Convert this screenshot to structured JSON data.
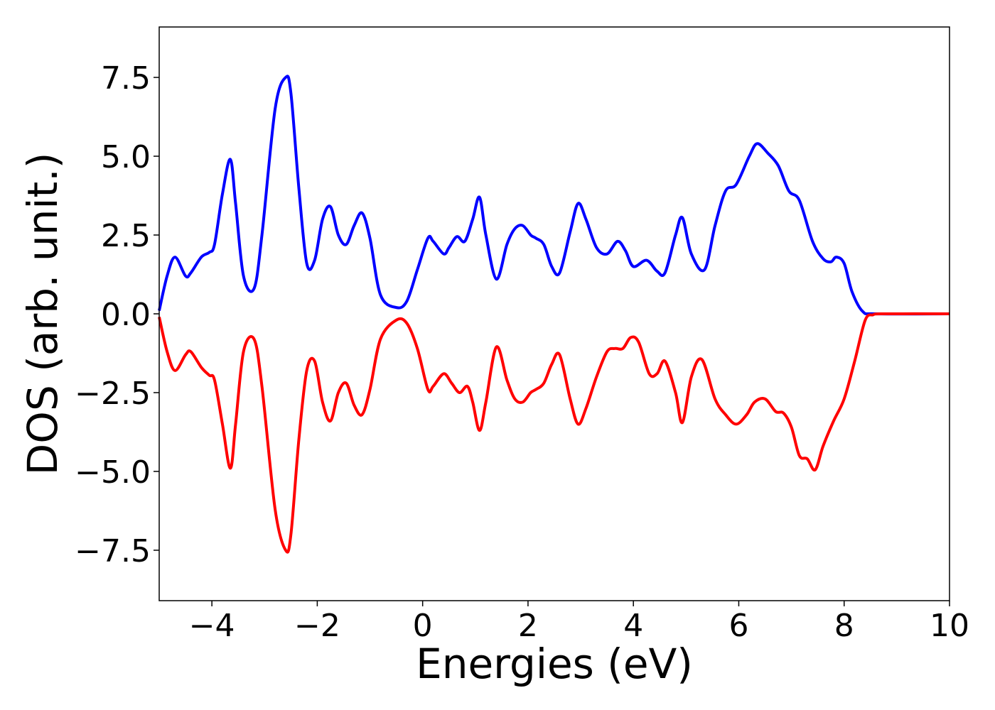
{
  "chart_data": {
    "type": "line",
    "title": "",
    "xlabel": "Energies (eV)",
    "ylabel": "DOS (arb. unit.)",
    "xlim": [
      -5,
      10
    ],
    "ylim": [
      -9.1,
      9.1
    ],
    "xticks": [
      -4,
      -2,
      0,
      2,
      4,
      6,
      8,
      10
    ],
    "xtick_labels": [
      "−4",
      "−2",
      "0",
      "2",
      "4",
      "6",
      "8",
      "10"
    ],
    "yticks": [
      -7.5,
      -5.0,
      -2.5,
      0.0,
      2.5,
      5.0,
      7.5
    ],
    "ytick_labels": [
      "−7.5",
      "−5.0",
      "−2.5",
      "0.0",
      "2.5",
      "5.0",
      "7.5"
    ],
    "grid": false,
    "legend": "none",
    "series": [
      {
        "color": "#0000ff",
        "x": [
          -5.0,
          -4.85,
          -4.7,
          -4.5,
          -4.4,
          -4.2,
          -4.05,
          -3.95,
          -3.8,
          -3.65,
          -3.55,
          -3.4,
          -3.2,
          -3.05,
          -2.8,
          -2.6,
          -2.5,
          -2.35,
          -2.2,
          -2.05,
          -1.9,
          -1.75,
          -1.6,
          -1.45,
          -1.3,
          -1.15,
          -1.0,
          -0.8,
          -0.5,
          -0.3,
          -0.1,
          0.1,
          0.2,
          0.4,
          0.5,
          0.65,
          0.8,
          0.95,
          1.08,
          1.2,
          1.4,
          1.6,
          1.75,
          1.9,
          2.05,
          2.15,
          2.3,
          2.45,
          2.6,
          2.8,
          2.95,
          3.1,
          3.3,
          3.5,
          3.7,
          3.85,
          4.0,
          4.25,
          4.45,
          4.6,
          4.8,
          4.93,
          5.1,
          5.35,
          5.55,
          5.75,
          5.95,
          6.2,
          6.35,
          6.55,
          6.75,
          6.95,
          7.15,
          7.4,
          7.6,
          7.75,
          7.85,
          8.0,
          8.15,
          8.35,
          8.6,
          10.0
        ],
        "y": [
          0.1,
          1.2,
          1.8,
          1.2,
          1.3,
          1.8,
          1.95,
          2.2,
          3.8,
          4.9,
          3.5,
          1.2,
          0.8,
          2.5,
          6.5,
          7.5,
          7.0,
          4.0,
          1.6,
          1.7,
          3.0,
          3.4,
          2.5,
          2.2,
          2.8,
          3.2,
          2.4,
          0.6,
          0.2,
          0.4,
          1.4,
          2.4,
          2.3,
          1.9,
          2.1,
          2.45,
          2.3,
          3.0,
          3.7,
          2.5,
          1.1,
          2.2,
          2.7,
          2.8,
          2.5,
          2.4,
          2.2,
          1.5,
          1.3,
          2.6,
          3.5,
          3.0,
          2.1,
          1.9,
          2.3,
          2.0,
          1.5,
          1.7,
          1.35,
          1.3,
          2.5,
          3.05,
          1.9,
          1.4,
          2.8,
          3.9,
          4.1,
          5.0,
          5.4,
          5.1,
          4.7,
          3.9,
          3.6,
          2.3,
          1.75,
          1.65,
          1.8,
          1.6,
          0.7,
          0.08,
          0.0,
          0.0
        ]
      },
      {
        "color": "#ff0000",
        "x": [
          -5.0,
          -4.85,
          -4.7,
          -4.5,
          -4.4,
          -4.2,
          -4.05,
          -3.95,
          -3.8,
          -3.65,
          -3.55,
          -3.4,
          -3.2,
          -3.05,
          -2.8,
          -2.6,
          -2.5,
          -2.35,
          -2.2,
          -2.05,
          -1.9,
          -1.75,
          -1.6,
          -1.45,
          -1.3,
          -1.15,
          -1.0,
          -0.8,
          -0.5,
          -0.3,
          -0.1,
          0.1,
          0.2,
          0.4,
          0.55,
          0.7,
          0.85,
          0.95,
          1.08,
          1.2,
          1.4,
          1.6,
          1.75,
          1.9,
          2.05,
          2.15,
          2.3,
          2.45,
          2.6,
          2.8,
          2.95,
          3.1,
          3.3,
          3.5,
          3.65,
          3.8,
          3.95,
          4.1,
          4.3,
          4.45,
          4.6,
          4.8,
          4.93,
          5.1,
          5.3,
          5.55,
          5.75,
          5.95,
          6.15,
          6.3,
          6.5,
          6.7,
          6.85,
          7.0,
          7.15,
          7.3,
          7.45,
          7.6,
          7.8,
          8.0,
          8.2,
          8.4,
          8.55,
          8.7,
          10.0
        ],
        "y": [
          -0.1,
          -1.2,
          -1.8,
          -1.3,
          -1.2,
          -1.7,
          -1.95,
          -2.1,
          -3.5,
          -4.9,
          -3.5,
          -1.2,
          -0.8,
          -2.3,
          -6.2,
          -7.5,
          -7.0,
          -4.0,
          -1.8,
          -1.5,
          -2.8,
          -3.4,
          -2.5,
          -2.2,
          -2.9,
          -3.2,
          -2.4,
          -0.8,
          -0.2,
          -0.3,
          -1.1,
          -2.4,
          -2.3,
          -1.9,
          -2.2,
          -2.5,
          -2.3,
          -2.8,
          -3.7,
          -2.8,
          -1.05,
          -2.1,
          -2.7,
          -2.8,
          -2.5,
          -2.4,
          -2.2,
          -1.6,
          -1.3,
          -2.7,
          -3.5,
          -3.0,
          -2.0,
          -1.2,
          -1.1,
          -1.1,
          -0.75,
          -0.9,
          -1.9,
          -1.9,
          -1.5,
          -2.5,
          -3.45,
          -2.0,
          -1.45,
          -2.7,
          -3.2,
          -3.5,
          -3.2,
          -2.8,
          -2.7,
          -3.1,
          -3.15,
          -3.6,
          -4.5,
          -4.6,
          -4.95,
          -4.2,
          -3.4,
          -2.7,
          -1.5,
          -0.2,
          -0.03,
          0.0,
          0.0
        ]
      }
    ]
  }
}
